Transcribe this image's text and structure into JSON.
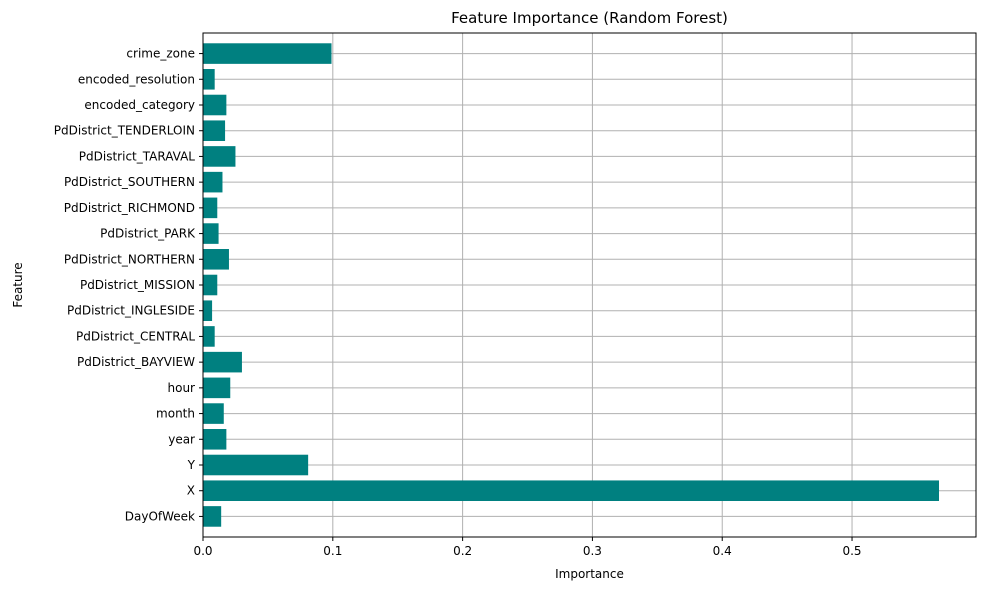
{
  "chart_data": {
    "type": "bar",
    "orientation": "horizontal",
    "title": "Feature Importance (Random Forest)",
    "xlabel": "Importance",
    "ylabel": "Feature",
    "categories": [
      "DayOfWeek",
      "X",
      "Y",
      "year",
      "month",
      "hour",
      "PdDistrict_BAYVIEW",
      "PdDistrict_CENTRAL",
      "PdDistrict_INGLESIDE",
      "PdDistrict_MISSION",
      "PdDistrict_NORTHERN",
      "PdDistrict_PARK",
      "PdDistrict_RICHMOND",
      "PdDistrict_SOUTHERN",
      "PdDistrict_TARAVAL",
      "PdDistrict_TENDERLOIN",
      "encoded_category",
      "encoded_resolution",
      "crime_zone"
    ],
    "values": [
      0.014,
      0.567,
      0.081,
      0.018,
      0.016,
      0.021,
      0.03,
      0.009,
      0.007,
      0.011,
      0.02,
      0.012,
      0.011,
      0.015,
      0.025,
      0.017,
      0.018,
      0.009,
      0.099
    ],
    "xlim": [
      0,
      0.5955
    ],
    "xticks": [
      0,
      0.1,
      0.2,
      0.3,
      0.4,
      0.5
    ],
    "xtick_labels": [
      "0.0",
      "0.1",
      "0.2",
      "0.3",
      "0.4",
      "0.5"
    ],
    "grid": true,
    "bar_color": "#008080",
    "grid_color": "#b0b0b0"
  }
}
